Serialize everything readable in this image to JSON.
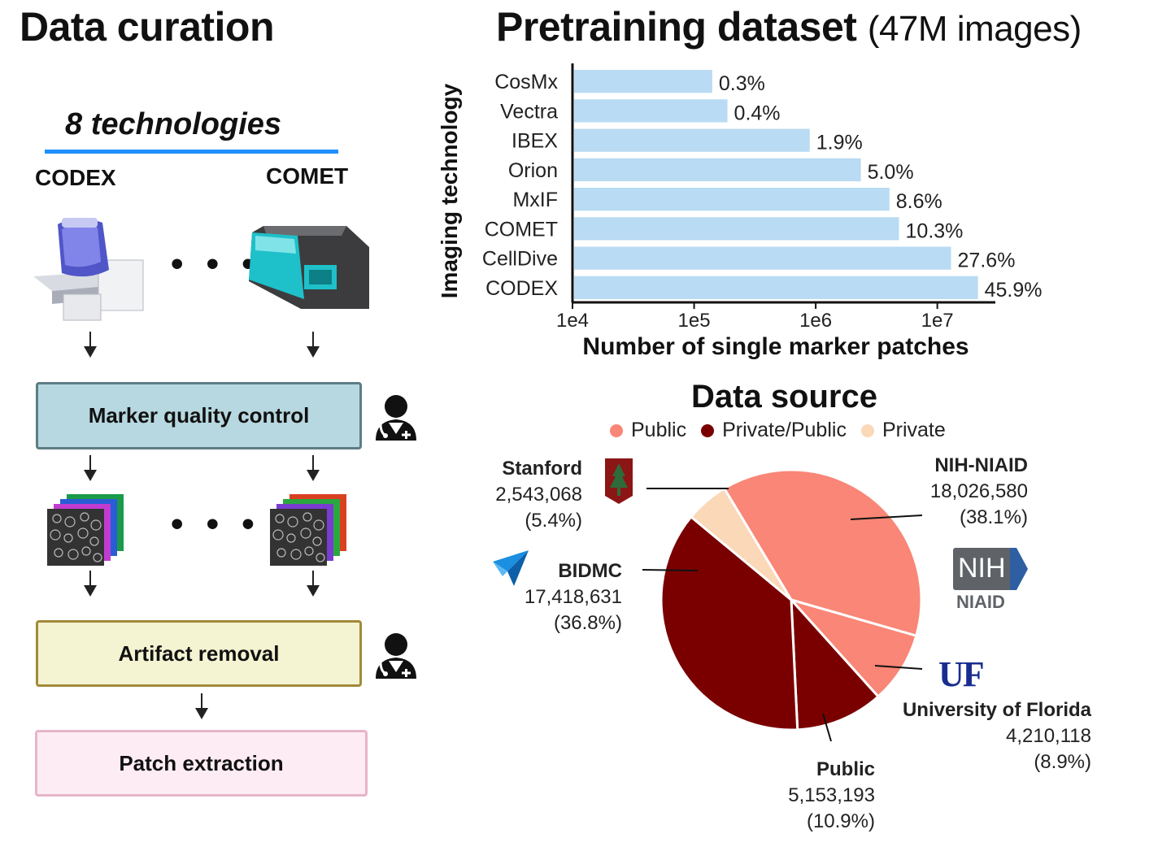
{
  "left": {
    "title": "Data curation",
    "tech_heading": "8 technologies",
    "tech_left": "CODEX",
    "tech_right": "COMET",
    "ellipsis": "• • •",
    "steps": [
      "Marker quality control",
      "Artifact removal",
      "Patch extraction"
    ],
    "colors": {
      "qc_fill": "#b7d8e0",
      "qc_border": "#5e7c84",
      "artifact_fill": "#f4f3d2",
      "artifact_border": "#a28a3a",
      "patch_fill": "#fdecf3",
      "patch_border": "#e7b5c8",
      "underline": "#1e90ff"
    }
  },
  "right": {
    "title_bold": "Pretraining dataset",
    "title_light": "(47M images)",
    "pie_title": "Data source"
  },
  "chart_data": [
    {
      "type": "bar",
      "orientation": "horizontal",
      "categories": [
        "CosMx",
        "Vectra",
        "IBEX",
        "Orion",
        "MxIF",
        "COMET",
        "CellDive",
        "CODEX"
      ],
      "values": [
        141000,
        188000,
        893000,
        2350000,
        4040000,
        4840000,
        12970000,
        21570000
      ],
      "labels": [
        "0.3%",
        "0.4%",
        "1.9%",
        "5.0%",
        "8.6%",
        "10.3%",
        "27.6%",
        "45.9%"
      ],
      "xlabel": "Number of single marker patches",
      "ylabel": "Imaging technology",
      "xscale": "log",
      "xlim": [
        10000,
        30000000
      ],
      "xticks": [
        10000,
        100000,
        1000000,
        10000000
      ],
      "xtick_labels": [
        "1e4",
        "1e5",
        "1e6",
        "1e7"
      ],
      "bar_color": "#b9dbf3",
      "grid": false
    },
    {
      "type": "pie",
      "title": "Data source",
      "legend": [
        {
          "name": "Public",
          "color": "#f98676"
        },
        {
          "name": "Private/Public",
          "color": "#7a0000"
        },
        {
          "name": "Private",
          "color": "#fad8b8"
        }
      ],
      "legend_position": "top",
      "slices": [
        {
          "name": "NIH-NIAID",
          "value": 18026580,
          "count_label": "18,026,580",
          "percent": "(38.1%)",
          "color": "#f98676"
        },
        {
          "name": "University of Florida",
          "value": 4210118,
          "count_label": "4,210,118",
          "percent": "(8.9%)",
          "color": "#f98676"
        },
        {
          "name": "Public",
          "value": 5153193,
          "count_label": "5,153,193",
          "percent": "(10.9%)",
          "color": "#7a0000"
        },
        {
          "name": "BIDMC",
          "value": 17418631,
          "count_label": "17,418,631",
          "percent": "(36.8%)",
          "color": "#7a0000"
        },
        {
          "name": "Stanford",
          "value": 2543068,
          "count_label": "2,543,068",
          "percent": "(5.4%)",
          "color": "#fad8b8"
        }
      ],
      "logos": {
        "nih_text": "NIH",
        "nih_sub": "NIAID",
        "uf_text": "UF"
      }
    }
  ]
}
